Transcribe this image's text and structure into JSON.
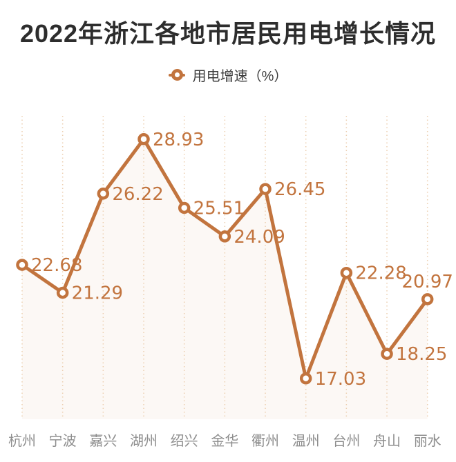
{
  "page": {
    "title": "2022年浙江各地市居民用电增长情况",
    "background": "#ffffff"
  },
  "legend": {
    "marker_icon": "hollow-circle-icon",
    "label": "用电增速（%）"
  },
  "colors": {
    "accent": "#c2743e",
    "title_text": "#2d2d2d",
    "legend_text": "#3d3d3d",
    "axis_label": "#8e8e8e",
    "gridline": "#eccfb0",
    "area_fill": "rgba(194,116,62,0.05)",
    "marker_fill": "#ffffff"
  },
  "chart_data": {
    "type": "line",
    "title": "2022年浙江各地市居民用电增长情况",
    "categories": [
      "杭州",
      "宁波",
      "嘉兴",
      "湖州",
      "绍兴",
      "金华",
      "衢州",
      "温州",
      "台州",
      "舟山",
      "丽水"
    ],
    "series": [
      {
        "name": "用电增速（%）",
        "values": [
          22.68,
          21.29,
          26.22,
          28.93,
          25.51,
          24.09,
          26.45,
          17.03,
          22.28,
          18.25,
          20.97
        ]
      }
    ],
    "value_labels": [
      "22.68",
      "21.29",
      "26.22",
      "28.93",
      "25.51",
      "24.09",
      "26.45",
      "17.03",
      "22.28",
      "18.25",
      "20.97"
    ],
    "label_positions": [
      "right",
      "right",
      "right",
      "right",
      "right",
      "right",
      "right",
      "right",
      "right",
      "right",
      "above"
    ],
    "xlabel": "",
    "ylabel": "用电增速（%）",
    "ylim": [
      15,
      30
    ],
    "grid": "vertical-dotted-only",
    "legend_position": "top-center",
    "marker": "hollow-circle",
    "value_labels_shown": true
  }
}
